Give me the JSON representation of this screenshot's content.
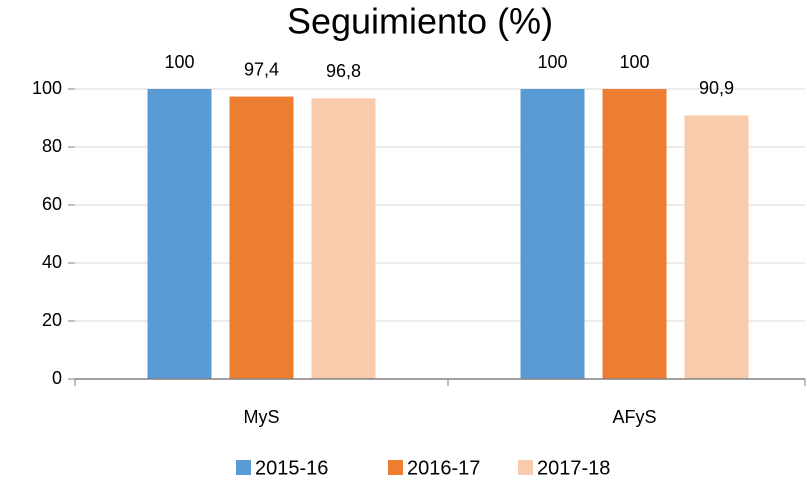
{
  "chart_data": {
    "type": "bar",
    "title": "Seguimiento (%)",
    "categories": [
      "MyS",
      "AFyS"
    ],
    "series": [
      {
        "name": "2015-16",
        "color": "#5b9bd5",
        "values": [
          100,
          100
        ],
        "value_labels": [
          "100",
          "100"
        ]
      },
      {
        "name": "2016-17",
        "color": "#ed7d31",
        "values": [
          97.4,
          100
        ],
        "value_labels": [
          "97,4",
          "100"
        ]
      },
      {
        "name": "2017-18",
        "color": "#f8cbad",
        "values": [
          96.8,
          90.9
        ],
        "value_labels": [
          "96,8",
          "90,9"
        ]
      }
    ],
    "ylim": [
      0,
      100
    ],
    "yticks": [
      0,
      20,
      40,
      60,
      80,
      100
    ],
    "grid": true,
    "legend": "bottom"
  }
}
